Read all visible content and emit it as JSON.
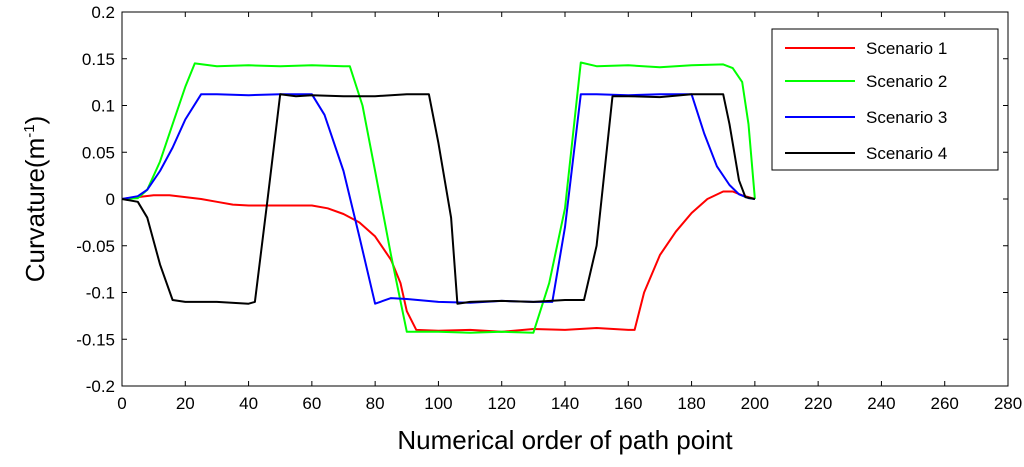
{
  "chart_data": {
    "type": "line",
    "xlabel": "Numerical order of path point",
    "ylabel_main": "Curvature(m",
    "ylabel_sup": "-1",
    "ylabel_close": ")",
    "xlim": [
      0,
      280
    ],
    "ylim": [
      -0.2,
      0.2
    ],
    "xticks": [
      0,
      20,
      40,
      60,
      80,
      100,
      120,
      140,
      160,
      180,
      200,
      220,
      240,
      260,
      280
    ],
    "yticks": [
      -0.2,
      -0.15,
      -0.1,
      -0.05,
      0,
      0.05,
      0.1,
      0.15,
      0.2
    ],
    "ytick_labels": [
      "-0.2",
      "-0.15",
      "-0.1",
      "-0.05",
      "0",
      "0.05",
      "0.1",
      "0.15",
      "0.2"
    ],
    "grid": false,
    "legend_position": "top-right",
    "series": [
      {
        "name": "Scenario 1",
        "color": "#ff0000",
        "x": [
          0,
          5,
          10,
          15,
          20,
          25,
          30,
          35,
          40,
          45,
          50,
          55,
          60,
          65,
          70,
          75,
          80,
          85,
          88,
          90,
          93,
          100,
          110,
          120,
          130,
          140,
          150,
          160,
          162,
          165,
          170,
          175,
          180,
          185,
          190,
          193,
          196,
          200
        ],
        "y": [
          0,
          0.002,
          0.004,
          0.004,
          0.002,
          0,
          -0.003,
          -0.006,
          -0.007,
          -0.007,
          -0.007,
          -0.007,
          -0.007,
          -0.01,
          -0.016,
          -0.025,
          -0.04,
          -0.065,
          -0.09,
          -0.12,
          -0.14,
          -0.141,
          -0.14,
          -0.142,
          -0.139,
          -0.14,
          -0.138,
          -0.14,
          -0.14,
          -0.1,
          -0.06,
          -0.035,
          -0.015,
          0,
          0.008,
          0.008,
          0.004,
          0
        ]
      },
      {
        "name": "Scenario 2",
        "color": "#00ff00",
        "x": [
          0,
          5,
          8,
          12,
          16,
          20,
          23,
          30,
          40,
          50,
          60,
          70,
          72,
          76,
          80,
          85,
          90,
          95,
          100,
          110,
          120,
          130,
          135,
          140,
          145,
          150,
          160,
          170,
          180,
          190,
          193,
          196,
          198,
          200
        ],
        "y": [
          0,
          0.001,
          0.01,
          0.04,
          0.08,
          0.12,
          0.145,
          0.142,
          0.143,
          0.142,
          0.143,
          0.142,
          0.142,
          0.1,
          0.03,
          -0.06,
          -0.142,
          -0.142,
          -0.142,
          -0.143,
          -0.142,
          -0.143,
          -0.09,
          -0.01,
          0.146,
          0.142,
          0.143,
          0.141,
          0.143,
          0.144,
          0.14,
          0.125,
          0.08,
          0
        ]
      },
      {
        "name": "Scenario 3",
        "color": "#0000ff",
        "x": [
          0,
          5,
          8,
          12,
          16,
          20,
          25,
          30,
          40,
          50,
          60,
          64,
          70,
          75,
          80,
          85,
          90,
          100,
          110,
          120,
          130,
          136,
          140,
          145,
          150,
          160,
          170,
          180,
          184,
          188,
          192,
          195,
          198,
          200
        ],
        "y": [
          0,
          0.003,
          0.01,
          0.03,
          0.055,
          0.085,
          0.112,
          0.112,
          0.111,
          0.112,
          0.112,
          0.09,
          0.03,
          -0.04,
          -0.112,
          -0.106,
          -0.107,
          -0.11,
          -0.111,
          -0.109,
          -0.11,
          -0.11,
          -0.03,
          0.112,
          0.112,
          0.111,
          0.112,
          0.112,
          0.07,
          0.035,
          0.015,
          0.005,
          0.001,
          0
        ]
      },
      {
        "name": "Scenario 4",
        "color": "#000000",
        "x": [
          0,
          5,
          8,
          12,
          16,
          20,
          30,
          40,
          42,
          46,
          50,
          55,
          60,
          70,
          80,
          90,
          97,
          100,
          104,
          106,
          110,
          120,
          130,
          140,
          146,
          150,
          155,
          160,
          170,
          180,
          190,
          192,
          195,
          197,
          200
        ],
        "y": [
          0,
          -0.003,
          -0.02,
          -0.07,
          -0.108,
          -0.11,
          -0.11,
          -0.112,
          -0.11,
          0,
          0.112,
          0.11,
          0.111,
          0.11,
          0.11,
          0.112,
          0.112,
          0.06,
          -0.02,
          -0.112,
          -0.11,
          -0.109,
          -0.11,
          -0.108,
          -0.108,
          -0.05,
          0.11,
          0.11,
          0.109,
          0.112,
          0.112,
          0.08,
          0.02,
          0.002,
          0
        ]
      }
    ]
  }
}
